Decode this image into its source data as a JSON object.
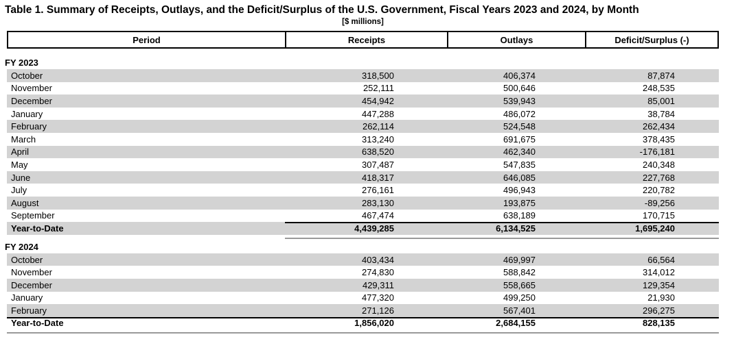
{
  "title": "Table 1. Summary of Receipts, Outlays, and the Deficit/Surplus of the U.S. Government, Fiscal Years 2023 and 2024, by Month",
  "subtitle": "[$ millions]",
  "columns": [
    "Period",
    "Receipts",
    "Outlays",
    "Deficit/Surplus (-)"
  ],
  "colors": {
    "row_shade": "#d3d3d3",
    "header_border": "#000000",
    "total_rule_top": "#000000",
    "total_rule_bottom": "#999999"
  },
  "sections": [
    {
      "label": "FY 2023",
      "rows": [
        [
          "October",
          "318,500",
          "406,374",
          "87,874"
        ],
        [
          "November",
          "252,111",
          "500,646",
          "248,535"
        ],
        [
          "December",
          "454,942",
          "539,943",
          "85,001"
        ],
        [
          "January",
          "447,288",
          "486,072",
          "38,784"
        ],
        [
          "February",
          "262,114",
          "524,548",
          "262,434"
        ],
        [
          "March",
          "313,240",
          "691,675",
          "378,435"
        ],
        [
          "April",
          "638,520",
          "462,340",
          "-176,181"
        ],
        [
          "May",
          "307,487",
          "547,835",
          "240,348"
        ],
        [
          "June",
          "418,317",
          "646,085",
          "227,768"
        ],
        [
          "July",
          "276,161",
          "496,943",
          "220,782"
        ],
        [
          "August",
          "283,130",
          "193,875",
          "-89,256"
        ],
        [
          "September",
          "467,474",
          "638,189",
          "170,715"
        ]
      ],
      "total": [
        "Year-to-Date",
        "4,439,285",
        "6,134,525",
        "1,695,240"
      ],
      "total_rule_span": "numeric"
    },
    {
      "label": "FY 2024",
      "rows": [
        [
          "October",
          "403,434",
          "469,997",
          "66,564"
        ],
        [
          "November",
          "274,830",
          "588,842",
          "314,012"
        ],
        [
          "December",
          "429,311",
          "558,665",
          "129,354"
        ],
        [
          "January",
          "477,320",
          "499,250",
          "21,930"
        ],
        [
          "February",
          "271,126",
          "567,401",
          "296,275"
        ]
      ],
      "total": [
        "Year-to-Date",
        "1,856,020",
        "2,684,155",
        "828,135"
      ],
      "total_rule_span": "full"
    }
  ]
}
